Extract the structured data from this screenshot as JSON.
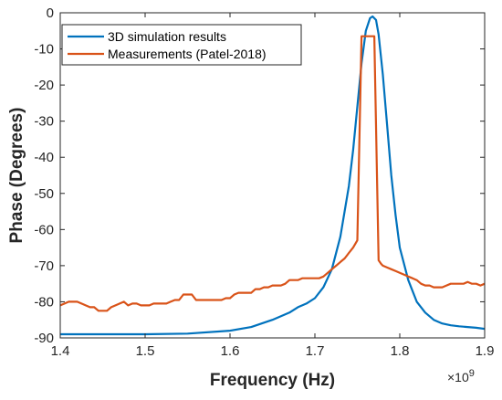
{
  "chart_data": {
    "type": "line",
    "xlabel": "Frequency (Hz)",
    "ylabel": "Phase (Degrees)",
    "x_multiplier_label": "×10",
    "x_multiplier_exp": "9",
    "xlim": [
      1.4,
      1.9
    ],
    "ylim": [
      -90,
      0
    ],
    "xticks": [
      "1.4",
      "1.5",
      "1.6",
      "1.7",
      "1.8",
      "1.9"
    ],
    "yticks": [
      "0",
      "-10",
      "-20",
      "-30",
      "-40",
      "-50",
      "-60",
      "-70",
      "-80",
      "-90"
    ],
    "grid": false,
    "legend_position": "top-left",
    "series": [
      {
        "name": "3D simulation results",
        "color": "#0072BD",
        "x": [
          1.4,
          1.45,
          1.5,
          1.55,
          1.6,
          1.625,
          1.65,
          1.67,
          1.68,
          1.69,
          1.7,
          1.71,
          1.72,
          1.73,
          1.74,
          1.745,
          1.75,
          1.755,
          1.76,
          1.765,
          1.768,
          1.772,
          1.775,
          1.78,
          1.785,
          1.79,
          1.795,
          1.8,
          1.81,
          1.82,
          1.83,
          1.84,
          1.85,
          1.86,
          1.87,
          1.88,
          1.89,
          1.9
        ],
        "y": [
          -89,
          -89,
          -89,
          -88.8,
          -88,
          -87,
          -85,
          -83,
          -81.5,
          -80.5,
          -79,
          -76,
          -71,
          -62,
          -48,
          -38,
          -26,
          -14,
          -5,
          -1.5,
          -1,
          -2,
          -6,
          -17,
          -31,
          -45,
          -56,
          -65,
          -74,
          -80,
          -83,
          -85,
          -86,
          -86.5,
          -86.8,
          -87,
          -87.2,
          -87.5
        ]
      },
      {
        "name": "Measurements (Patel-2018)",
        "color": "#D95319",
        "x": [
          1.4,
          1.405,
          1.41,
          1.415,
          1.42,
          1.425,
          1.43,
          1.435,
          1.44,
          1.445,
          1.45,
          1.455,
          1.46,
          1.465,
          1.47,
          1.475,
          1.48,
          1.485,
          1.49,
          1.495,
          1.5,
          1.505,
          1.51,
          1.515,
          1.52,
          1.525,
          1.53,
          1.535,
          1.54,
          1.545,
          1.55,
          1.555,
          1.56,
          1.565,
          1.57,
          1.575,
          1.58,
          1.585,
          1.59,
          1.595,
          1.6,
          1.605,
          1.61,
          1.615,
          1.62,
          1.625,
          1.63,
          1.635,
          1.64,
          1.645,
          1.65,
          1.655,
          1.66,
          1.665,
          1.67,
          1.675,
          1.68,
          1.685,
          1.69,
          1.695,
          1.7,
          1.705,
          1.71,
          1.715,
          1.72,
          1.725,
          1.73,
          1.735,
          1.74,
          1.745,
          1.75,
          1.755,
          1.76,
          1.765,
          1.77,
          1.775,
          1.778,
          1.78,
          1.785,
          1.79,
          1.795,
          1.8,
          1.805,
          1.81,
          1.815,
          1.82,
          1.825,
          1.83,
          1.835,
          1.84,
          1.845,
          1.85,
          1.855,
          1.86,
          1.865,
          1.87,
          1.875,
          1.88,
          1.885,
          1.89,
          1.895,
          1.9
        ],
        "y": [
          -81,
          -80.5,
          -80,
          -80,
          -80,
          -80.5,
          -81,
          -81.5,
          -81.5,
          -82.5,
          -82.5,
          -82.5,
          -81.5,
          -81,
          -80.5,
          -80,
          -81,
          -80.5,
          -80.5,
          -81,
          -81,
          -81,
          -80.5,
          -80.5,
          -80.5,
          -80.5,
          -80,
          -79.5,
          -79.5,
          -78,
          -78,
          -78,
          -79.5,
          -79.5,
          -79.5,
          -79.5,
          -79.5,
          -79.5,
          -79.5,
          -79,
          -79,
          -78,
          -77.5,
          -77.5,
          -77.5,
          -77.5,
          -76.5,
          -76.5,
          -76,
          -76,
          -75.5,
          -75.5,
          -75.5,
          -75,
          -74,
          -74,
          -74,
          -73.5,
          -73.5,
          -73.5,
          -73.5,
          -73.5,
          -73,
          -72,
          -71,
          -70,
          -69,
          -68,
          -66.5,
          -65,
          -63,
          -6.5,
          -6.5,
          -6.5,
          -6.5,
          -68.5,
          -69.5,
          -70,
          -70.5,
          -71,
          -71.5,
          -72,
          -72.5,
          -73,
          -73.5,
          -74,
          -75,
          -75.5,
          -75.5,
          -76,
          -76,
          -76,
          -75.5,
          -75,
          -75,
          -75,
          -75,
          -74.5,
          -75,
          -75,
          -75.5,
          -75
        ]
      }
    ]
  }
}
